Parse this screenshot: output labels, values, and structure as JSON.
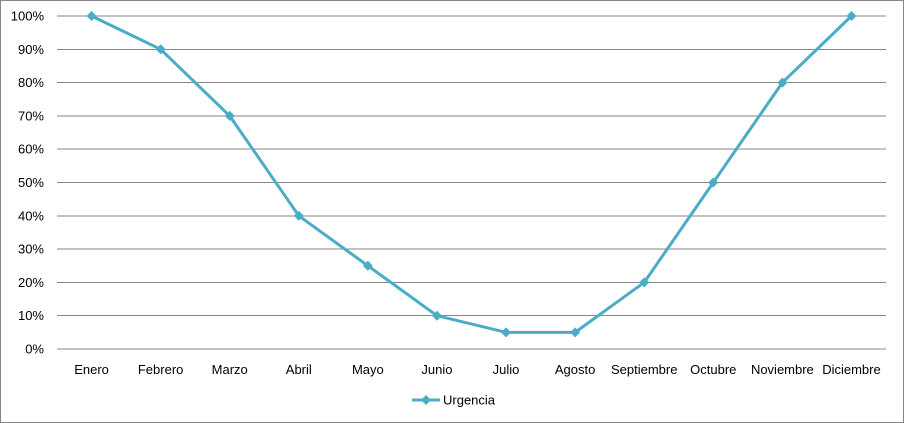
{
  "chart_data": {
    "type": "line",
    "categories": [
      "Enero",
      "Febrero",
      "Marzo",
      "Abril",
      "Mayo",
      "Junio",
      "Julio",
      "Agosto",
      "Septiembre",
      "Octubre",
      "Noviembre",
      "Diciembre"
    ],
    "series": [
      {
        "name": "Urgencia",
        "values": [
          100,
          90,
          70,
          40,
          25,
          10,
          5,
          5,
          20,
          50,
          80,
          100
        ],
        "color": "#4bacc6",
        "marker": "diamond"
      }
    ],
    "ylim": [
      0,
      100
    ],
    "y_ticks": [
      "0%",
      "10%",
      "20%",
      "30%",
      "40%",
      "50%",
      "60%",
      "70%",
      "80%",
      "90%",
      "100%"
    ],
    "grid": true,
    "legend": "bottom-center",
    "title": "",
    "xlabel": "",
    "ylabel": ""
  }
}
